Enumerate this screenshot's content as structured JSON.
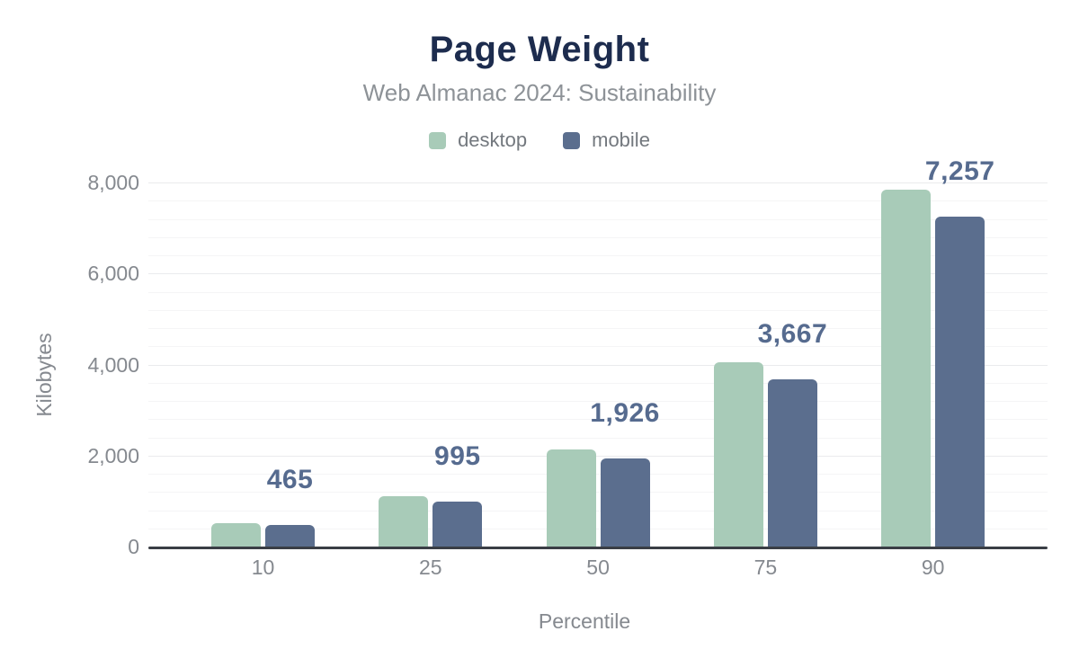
{
  "page": {
    "background": "#ffffff"
  },
  "chart_data": {
    "type": "bar",
    "title": "Page Weight",
    "subtitle": "Web Almanac 2024: Sustainability",
    "xlabel": "Percentile",
    "ylabel": "Kilobytes",
    "categories": [
      "10",
      "25",
      "50",
      "75",
      "90"
    ],
    "series": [
      {
        "name": "desktop",
        "color": "#a8cbb8",
        "estimated": true,
        "values": [
          515,
          1105,
          2135,
          4050,
          7850
        ]
      },
      {
        "name": "mobile",
        "color": "#5b6e8e",
        "estimated": false,
        "values": [
          465,
          995,
          1926,
          3667,
          7257
        ]
      }
    ],
    "bar_labels": {
      "series": "mobile",
      "values": [
        "465",
        "995",
        "1,926",
        "3,667",
        "7,257"
      ]
    },
    "y_ticks": [
      "0",
      "2,000",
      "4,000",
      "6,000",
      "8,000"
    ],
    "ylim": [
      0,
      8000
    ],
    "minor_grid_step": 400,
    "major_grid_step": 2000,
    "grid": "horizontal",
    "legend_position": "top",
    "colors": {
      "title": "#1d2c4e",
      "subtitle": "#8d9297",
      "legend_text": "#73787e",
      "axis_text": "#85898f",
      "data_label": "#566b8f",
      "axis_line": "#3a3e45",
      "grid_major": "#eaebed",
      "grid_minor": "#f5f5f6"
    }
  }
}
